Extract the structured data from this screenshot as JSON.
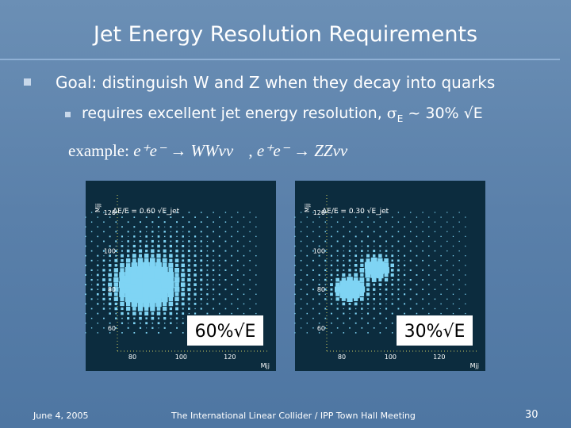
{
  "header": {
    "title": "Jet Energy Resolution Requirements"
  },
  "bullets": [
    {
      "text": "Goal: distinguish W and Z when they decay into quarks",
      "sub": {
        "text": "requires excellent jet energy resolution, ",
        "sigma": "σ",
        "index": "E",
        "rest": " ~ 30% √E"
      }
    }
  ],
  "example": {
    "label": "example:",
    "process_1": "e⁺e⁻ → WWνν",
    "separator": ",",
    "process_2": "e⁺e⁻ → ZZνν"
  },
  "plots": [
    {
      "label": "ΔE/E = 0.60 √E_jet",
      "overlay": "60%√E",
      "yticks": [
        "120",
        "100",
        "80",
        "60"
      ],
      "xticks": [
        "80",
        "100",
        "120"
      ],
      "yaxis": "Mjj",
      "xaxis": "Mjj"
    },
    {
      "label": "ΔE/E = 0.30 √E_jet",
      "overlay": "30%√E",
      "yticks": [
        "120",
        "100",
        "80",
        "60"
      ],
      "xticks": [
        "80",
        "100",
        "120"
      ],
      "yaxis": "Mjj",
      "xaxis": "Mjj"
    }
  ],
  "footer": {
    "date": "June 4, 2005",
    "event": "The International Linear Collider / IPP Town Hall Meeting",
    "page": "30"
  }
}
